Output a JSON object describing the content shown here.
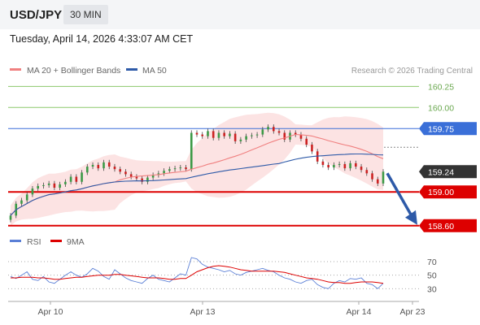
{
  "header": {
    "pair": "USD/JPY",
    "timeframe": "30 MIN",
    "timestamp": "Tuesday, April 14, 2026 4:33:07 AM CET"
  },
  "legend": {
    "ma20_label": "MA 20 + Bollinger Bands",
    "ma50_label": "MA 50",
    "credit": "Research © 2026 Trading Central"
  },
  "colors": {
    "ma20": "#f08080",
    "ma50": "#2e5aa8",
    "resistance": "#3a6fd8",
    "support": "#dd0000",
    "target_green": "#8cc86c",
    "arrow": "#2e5aa8",
    "candle_up": "#3c9a46",
    "candle_down": "#cc2222",
    "band_fill": "#fbdada"
  },
  "chart_data": {
    "type": "candlestick",
    "price_axis": {
      "ylim": [
        158.55,
        160.33
      ],
      "gridlines": false
    },
    "levels": [
      {
        "value": 160.25,
        "label": "160.25",
        "kind": "target"
      },
      {
        "value": 160.0,
        "label": "160.00",
        "kind": "target"
      },
      {
        "value": 159.75,
        "label": "159.75",
        "kind": "resistance"
      },
      {
        "value": 159.24,
        "label": "159.24",
        "kind": "last"
      },
      {
        "value": 159.0,
        "label": "159.00",
        "kind": "support"
      },
      {
        "value": 158.6,
        "label": "158.60",
        "kind": "support"
      }
    ],
    "x_ticks": [
      "Apr 10",
      "Apr 13",
      "Apr 14",
      "Apr 23"
    ],
    "forecast_arrow": {
      "from": 159.24,
      "to": 158.6
    },
    "closes": [
      158.72,
      158.86,
      158.9,
      158.97,
      159.04,
      159.07,
      159.08,
      159.1,
      159.05,
      159.09,
      159.12,
      159.18,
      159.12,
      159.23,
      159.3,
      159.32,
      159.28,
      159.35,
      159.3,
      159.27,
      159.24,
      159.21,
      159.18,
      159.16,
      159.12,
      159.17,
      159.2,
      159.22,
      159.25,
      159.27,
      159.28,
      159.29,
      159.27,
      159.7,
      159.68,
      159.66,
      159.72,
      159.64,
      159.7,
      159.66,
      159.69,
      159.6,
      159.62,
      159.66,
      159.67,
      159.68,
      159.74,
      159.77,
      159.72,
      159.7,
      159.62,
      159.7,
      159.68,
      159.63,
      159.56,
      159.48,
      159.36,
      159.32,
      159.29,
      159.32,
      159.33,
      159.28,
      159.34,
      159.3,
      159.26,
      159.22,
      159.15,
      159.1,
      159.24
    ],
    "rsi": {
      "ticks": [
        70,
        50,
        30
      ],
      "ylim": [
        22,
        82
      ],
      "legend": [
        "RSI",
        "9MA"
      ],
      "rsi_values": [
        48,
        45,
        50,
        55,
        44,
        42,
        48,
        40,
        38,
        44,
        50,
        55,
        50,
        47,
        52,
        60,
        56,
        48,
        44,
        58,
        52,
        46,
        42,
        40,
        38,
        45,
        50,
        44,
        42,
        40,
        46,
        52,
        50,
        76,
        74,
        66,
        62,
        60,
        58,
        55,
        57,
        52,
        50,
        54,
        56,
        58,
        60,
        57,
        55,
        50,
        46,
        44,
        40,
        38,
        42,
        44,
        36,
        32,
        30,
        38,
        42,
        40,
        45,
        44,
        46,
        38,
        36,
        30,
        38
      ],
      "ma_values": [
        46,
        46,
        47,
        47,
        47,
        46,
        46,
        45,
        44,
        44,
        45,
        46,
        47,
        47,
        48,
        49,
        50,
        50,
        50,
        51,
        51,
        50,
        49,
        48,
        47,
        46,
        46,
        46,
        45,
        44,
        44,
        45,
        45,
        50,
        55,
        58,
        61,
        63,
        64,
        63,
        62,
        60,
        58,
        57,
        56,
        56,
        56,
        56,
        56,
        55,
        54,
        52,
        50,
        48,
        46,
        45,
        44,
        42,
        40,
        39,
        39,
        38,
        38,
        39,
        40,
        40,
        40,
        39,
        38
      ]
    }
  }
}
